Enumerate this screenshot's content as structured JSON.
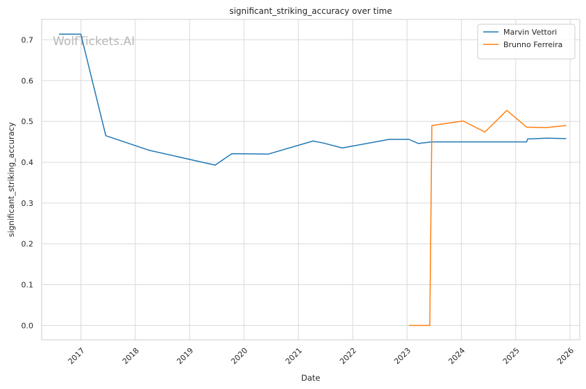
{
  "chart_data": {
    "type": "line",
    "title": "significant_striking_accuracy over time",
    "xlabel": "Date",
    "ylabel": "significant_striking_accuracy",
    "watermark": "WolfTickets.AI",
    "xlim": [
      "2016-04-12",
      "2026-03-07"
    ],
    "ylim": [
      -0.035,
      0.75
    ],
    "xticks": [
      {
        "date": "2017-01-01",
        "label": "2017"
      },
      {
        "date": "2018-01-01",
        "label": "2018"
      },
      {
        "date": "2019-01-01",
        "label": "2019"
      },
      {
        "date": "2020-01-01",
        "label": "2020"
      },
      {
        "date": "2021-01-01",
        "label": "2021"
      },
      {
        "date": "2022-01-01",
        "label": "2022"
      },
      {
        "date": "2023-01-01",
        "label": "2023"
      },
      {
        "date": "2024-01-01",
        "label": "2024"
      },
      {
        "date": "2025-01-01",
        "label": "2025"
      },
      {
        "date": "2026-01-01",
        "label": "2026"
      }
    ],
    "yticks": [
      {
        "value": 0.0,
        "label": "0.0"
      },
      {
        "value": 0.1,
        "label": "0.1"
      },
      {
        "value": 0.2,
        "label": "0.2"
      },
      {
        "value": 0.3,
        "label": "0.3"
      },
      {
        "value": 0.4,
        "label": "0.4"
      },
      {
        "value": 0.5,
        "label": "0.5"
      },
      {
        "value": 0.6,
        "label": "0.6"
      },
      {
        "value": 0.7,
        "label": "0.7"
      }
    ],
    "grid": true,
    "legend_position": "top-right",
    "series": [
      {
        "name": "Marvin Vettori",
        "color": "#1f77b4",
        "points": [
          [
            "2016-08-06",
            0.714
          ],
          [
            "2016-12-31",
            0.714
          ],
          [
            "2017-06-17",
            0.465
          ],
          [
            "2018-04-07",
            0.429
          ],
          [
            "2019-06-22",
            0.393
          ],
          [
            "2019-10-12",
            0.421
          ],
          [
            "2020-06-13",
            0.42
          ],
          [
            "2021-04-10",
            0.452
          ],
          [
            "2021-06-19",
            0.447
          ],
          [
            "2021-10-23",
            0.435
          ],
          [
            "2022-09-03",
            0.456
          ],
          [
            "2023-01-14",
            0.456
          ],
          [
            "2023-03-18",
            0.446
          ],
          [
            "2023-06-17",
            0.45
          ],
          [
            "2025-03-15",
            0.45
          ],
          [
            "2025-03-22",
            0.457
          ],
          [
            "2025-07-26",
            0.459
          ],
          [
            "2025-12-06",
            0.458
          ]
        ]
      },
      {
        "name": "Brunno Ferreira",
        "color": "#ff7f0e",
        "points": [
          [
            "2023-01-14",
            0.0
          ],
          [
            "2023-06-03",
            0.0
          ],
          [
            "2023-06-17",
            0.49
          ],
          [
            "2024-01-13",
            0.501
          ],
          [
            "2024-06-08",
            0.474
          ],
          [
            "2024-11-02",
            0.527
          ],
          [
            "2025-03-15",
            0.486
          ],
          [
            "2025-07-26",
            0.485
          ],
          [
            "2025-12-06",
            0.49
          ]
        ]
      }
    ]
  }
}
